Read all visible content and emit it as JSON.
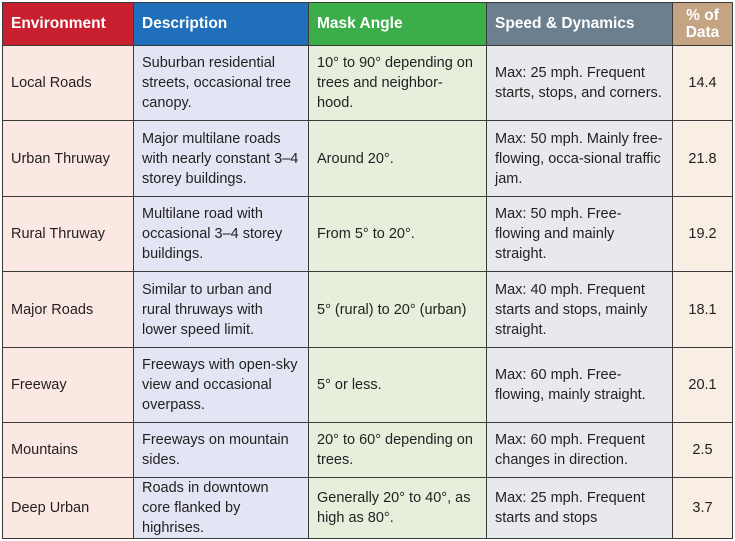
{
  "headers": {
    "environment": "Environment",
    "description": "Description",
    "mask_angle": "Mask Angle",
    "speed_dynamics": "Speed & Dynamics",
    "pct_line1": "% of",
    "pct_line2": "Data"
  },
  "colors": {
    "environment_header": "#c8202f",
    "description_header": "#1f6fba",
    "mask_angle_header": "#3bad49",
    "speed_header": "#6b7f8f",
    "pct_header": "#c4a482"
  },
  "rows": [
    {
      "environment": "Local Roads",
      "description": "Suburban residential streets, occasional tree canopy.",
      "mask_angle": "10° to 90° depending on trees and neighbor-hood.",
      "speed": "Max: 25 mph. Frequent starts, stops, and corners.",
      "pct": "14.4"
    },
    {
      "environment": "Urban Thruway",
      "description": "Major multilane roads with nearly constant 3–4 storey buildings.",
      "mask_angle": "Around 20°.",
      "speed": "Max: 50 mph. Mainly free-flowing, occa-sional traffic jam.",
      "pct": "21.8"
    },
    {
      "environment": "Rural Thruway",
      "description": "Multilane road with occasional 3–4 storey buildings.",
      "mask_angle": "From 5° to 20°.",
      "speed": "Max: 50 mph. Free-flowing and mainly straight.",
      "pct": "19.2"
    },
    {
      "environment": "Major Roads",
      "description": "Similar to urban and rural thruways with lower speed limit.",
      "mask_angle": "5° (rural) to 20° (urban)",
      "speed": "Max: 40 mph. Frequent starts and stops, mainly straight.",
      "pct": "18.1"
    },
    {
      "environment": "Freeway",
      "description": "Freeways with open-sky view and occasional overpass.",
      "mask_angle": "5° or less.",
      "speed": "Max: 60 mph. Free-flowing, mainly straight.",
      "pct": "20.1"
    },
    {
      "environment": "Mountains",
      "description": "Freeways on mountain sides.",
      "mask_angle": "20° to 60° depending on trees.",
      "speed": "Max: 60 mph. Frequent changes in direction.",
      "pct": "2.5"
    },
    {
      "environment": "Deep Urban",
      "description": "Roads in downtown core flanked by highrises.",
      "mask_angle": "Generally 20° to 40°, as high as 80°.",
      "speed": "Max: 25 mph. Frequent starts and stops",
      "pct": "3.7"
    }
  ]
}
